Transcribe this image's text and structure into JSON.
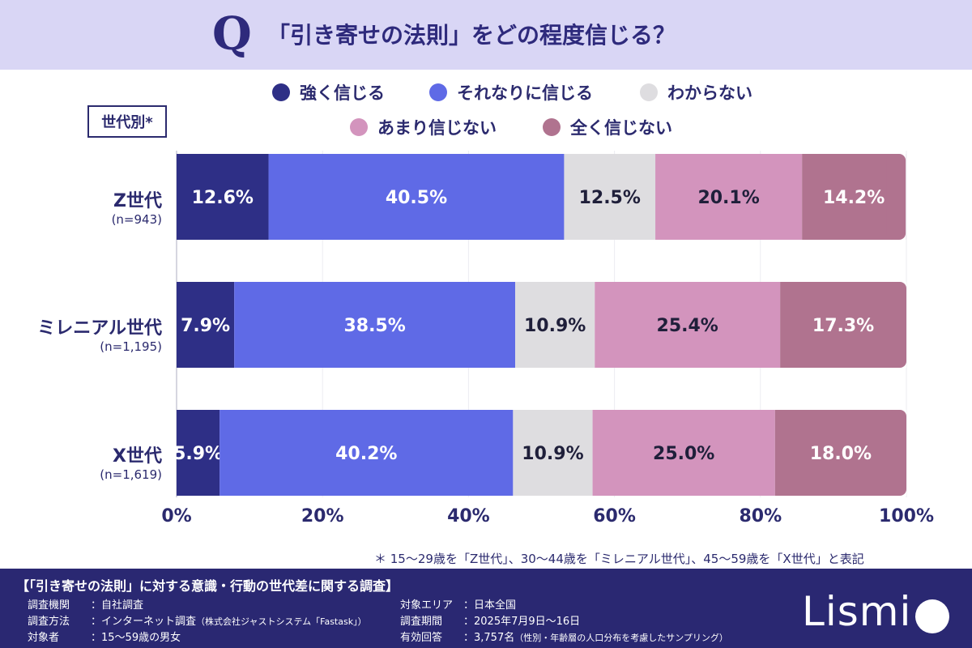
{
  "header": {
    "q_mark": "Q",
    "title": "「引き寄せの法則」をどの程度信じる？"
  },
  "legend": [
    {
      "label": "強く信じる",
      "color": "#2e2f86"
    },
    {
      "label": "それなりに信じる",
      "color": "#5f6ae6"
    },
    {
      "label": "わからない",
      "color": "#dedde0"
    },
    {
      "label": "あまり信じない",
      "color": "#d394bd"
    },
    {
      "label": "全く信じない",
      "color": "#b0738f"
    }
  ],
  "generation_badge": "世代別*",
  "chart_data": {
    "type": "bar",
    "orientation": "horizontal",
    "stacked": true,
    "categories": [
      "Z世代",
      "ミレニアル世代",
      "X世代"
    ],
    "category_n": [
      "(n=943)",
      "(n=1,195)",
      "(n=1,619)"
    ],
    "series": [
      {
        "name": "強く信じる",
        "color": "#2e2f86",
        "values": [
          12.6,
          7.9,
          5.9
        ]
      },
      {
        "name": "それなりに信じる",
        "color": "#5f6ae6",
        "values": [
          40.5,
          38.5,
          40.2
        ]
      },
      {
        "name": "わからない",
        "color": "#dedde0",
        "values": [
          12.5,
          10.9,
          10.9
        ]
      },
      {
        "name": "あまり信じない",
        "color": "#d394bd",
        "values": [
          20.1,
          25.4,
          25.0
        ]
      },
      {
        "name": "全く信じない",
        "color": "#b0738f",
        "values": [
          14.2,
          17.3,
          18.0
        ]
      }
    ],
    "data_labels": [
      [
        "12.6%",
        "40.5%",
        "12.5%",
        "20.1%",
        "14.2%"
      ],
      [
        "7.9%",
        "38.5%",
        "10.9%",
        "25.4%",
        "17.3%"
      ],
      [
        "5.9%",
        "40.2%",
        "10.9%",
        "25.0%",
        "18.0%"
      ]
    ],
    "x_ticks": [
      "0%",
      "20%",
      "40%",
      "60%",
      "80%",
      "100%"
    ],
    "xlim": [
      0,
      100
    ],
    "grid": true
  },
  "footnote": "＊ 15〜29歳を「Z世代」、30〜44歳を「ミレニアル世代」、45〜59歳を「X世代」と表記",
  "footer": {
    "survey_title": "【「引き寄せの法則」に対する意識・行動の世代差に関する調査】",
    "left": [
      {
        "key": "調査機関",
        "value": "：自社調査",
        "note": ""
      },
      {
        "key": "調査方法",
        "value": "：インターネット調査",
        "note": "（株式会社ジャストシステム「Fastask」）"
      },
      {
        "key": "対象者",
        "value": "：15〜59歳の男女",
        "note": ""
      }
    ],
    "right": [
      {
        "key": "対象エリア",
        "value": "：日本全国",
        "note": ""
      },
      {
        "key": "調査期間",
        "value": "：2025年7月9日〜16日",
        "note": ""
      },
      {
        "key": "有効回答",
        "value": "：3,757名",
        "note": "（性別・年齢層の人口分布を考慮したサンプリング）"
      }
    ],
    "logo": "Lismi"
  }
}
